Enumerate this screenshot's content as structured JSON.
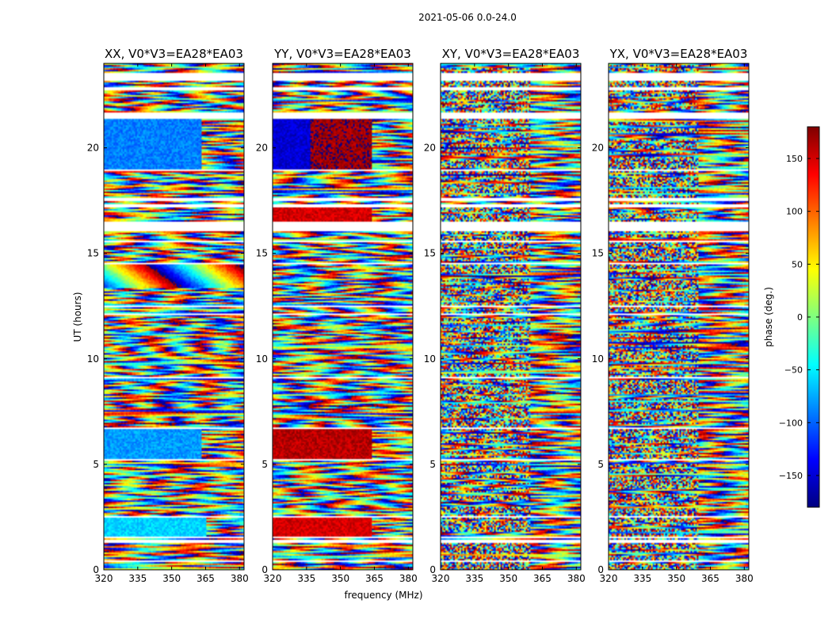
{
  "suptitle": "2021-05-06 0.0-24.0",
  "chart_data": {
    "type": "heatmap",
    "title": "2021-05-06 0.0-24.0",
    "xlabel": "frequency (MHz)",
    "ylabel": "UT (hours)",
    "xlim": [
      320,
      382
    ],
    "ylim": [
      0,
      24
    ],
    "xticks": [
      320,
      335,
      350,
      365,
      380
    ],
    "yticks": [
      0,
      5,
      10,
      15,
      20
    ],
    "panels": [
      {
        "title": "XX, V0*V3=EA28*EA03",
        "pattern": "xx"
      },
      {
        "title": "YY, V0*V3=EA28*EA03",
        "pattern": "yy"
      },
      {
        "title": "XY, V0*V3=EA28*EA03",
        "pattern": "xy"
      },
      {
        "title": "YX, V0*V3=EA28*EA03",
        "pattern": "yx"
      }
    ],
    "colorbar": {
      "label": "phase (deg.)",
      "range": [
        -180,
        180
      ],
      "ticks": [
        150,
        100,
        50,
        0,
        -50,
        -100,
        -150
      ],
      "colormap": "jet",
      "colors": [
        "#00007f",
        "#0000ff",
        "#007fff",
        "#00ffff",
        "#7fff7f",
        "#ffff00",
        "#ff7f00",
        "#ff0000",
        "#7f0000"
      ]
    },
    "gaps_hours": [
      [
        0.0,
        0.03
      ],
      [
        0.35,
        0.45
      ],
      [
        1.25,
        1.4
      ],
      [
        1.5,
        1.6
      ],
      [
        2.5,
        2.55
      ],
      [
        3.35,
        3.4
      ],
      [
        5.2,
        5.25
      ],
      [
        6.65,
        6.75
      ],
      [
        7.55,
        7.6
      ],
      [
        9.1,
        9.15
      ],
      [
        12.1,
        12.15
      ],
      [
        12.45,
        12.5
      ],
      [
        14.45,
        14.55
      ],
      [
        15.5,
        15.6
      ],
      [
        16.05,
        16.5
      ],
      [
        17.2,
        17.35
      ],
      [
        17.5,
        17.6
      ],
      [
        18.9,
        18.95
      ],
      [
        21.4,
        21.65
      ],
      [
        22.75,
        22.85
      ],
      [
        23.2,
        23.55
      ],
      [
        23.98,
        24.0
      ]
    ],
    "features": {
      "xx": [
        {
          "t": [
            1.6,
            2.5
          ],
          "f": [
            320,
            365
          ],
          "phase": -60,
          "note": "smooth cyan/blue block"
        },
        {
          "t": [
            5.25,
            6.65
          ],
          "f": [
            320,
            363
          ],
          "phase": -80
        },
        {
          "t": [
            13.4,
            14.45
          ],
          "f": [
            320,
            382
          ],
          "phase": "slow wrap"
        },
        {
          "t": [
            18.95,
            21.4
          ],
          "f": [
            320,
            363
          ],
          "phase": -90
        }
      ],
      "yy": [
        {
          "t": [
            1.6,
            2.5
          ],
          "f": [
            320,
            364
          ],
          "phase": 150,
          "note": "red block"
        },
        {
          "t": [
            5.25,
            6.65
          ],
          "f": [
            320,
            364
          ],
          "phase": 160
        },
        {
          "t": [
            16.5,
            17.2
          ],
          "f": [
            320,
            364
          ],
          "phase": 150
        },
        {
          "t": [
            18.95,
            21.4
          ],
          "f": [
            320,
            337
          ],
          "phase": -150
        },
        {
          "t": [
            18.95,
            21.4
          ],
          "f": [
            337,
            364
          ],
          "phase": 170
        }
      ]
    }
  }
}
